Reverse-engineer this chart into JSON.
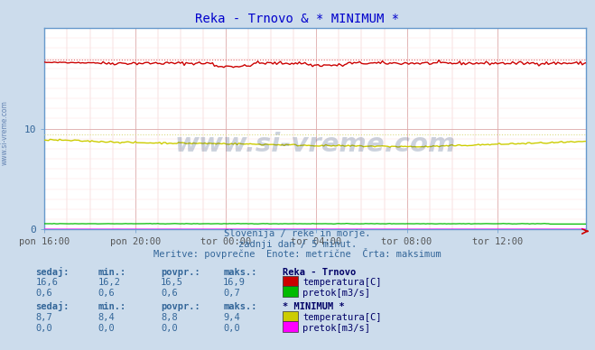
{
  "title": "Reka - Trnovo & * MINIMUM *",
  "title_color": "#0000cc",
  "bg_color": "#ccdcec",
  "plot_bg_color": "#ffffff",
  "frame_color": "#6699cc",
  "grid_color_v": "#ddaaaa",
  "grid_color_h": "#ffdddd",
  "x_labels": [
    "pon 16:00",
    "pon 20:00",
    "tor 00:00",
    "tor 04:00",
    "tor 08:00",
    "tor 12:00"
  ],
  "x_ticks": [
    0,
    48,
    96,
    144,
    192,
    240
  ],
  "n_points": 288,
  "ylim": [
    0,
    20
  ],
  "yticks": [
    0,
    10
  ],
  "ylabel_ticks": [
    "0",
    "10"
  ],
  "subtitle1": "Slovenija / reke in morje.",
  "subtitle2": "zadnji dan / 5 minut.",
  "subtitle3": "Meritve: povprečne  Enote: metrične  Črta: maksimum",
  "subtitle_color": "#336699",
  "watermark": "www.si-vreme.com",
  "watermark_color": "#1a3a6a",
  "reka_temp_color": "#cc0000",
  "reka_temp_dotted_color": "#dd6666",
  "reka_flow_color": "#00bb00",
  "min_temp_color": "#cccc00",
  "min_temp_dotted_color": "#dddd88",
  "min_flow_color": "#ff00ff",
  "table_header_color": "#336699",
  "table_value_color": "#336699",
  "table_label_color": "#000066",
  "table_name_color": "#000066",
  "sedaj_label": "sedaj:",
  "min_label": "min.:",
  "povpr_label": "povpr.:",
  "maks_label": "maks.:",
  "reka_name": "Reka - Trnovo",
  "min_name": "* MINIMUM *",
  "reka_temp_sedaj": "16,6",
  "reka_temp_min": "16,2",
  "reka_temp_povpr": "16,5",
  "reka_temp_maks": "16,9",
  "reka_flow_sedaj": "0,6",
  "reka_flow_min": "0,6",
  "reka_flow_povpr": "0,6",
  "reka_flow_maks": "0,7",
  "min_temp_sedaj": "8,7",
  "min_temp_min": "8,4",
  "min_temp_povpr": "8,8",
  "min_temp_maks": "9,4",
  "min_flow_sedaj": "0,0",
  "min_flow_min": "0,0",
  "min_flow_povpr": "0,0",
  "min_flow_maks": "0,0",
  "temp_label": "temperatura[C]",
  "flow_label": "pretok[m3/s]",
  "sidewatermark": "www.si-vreme.com"
}
